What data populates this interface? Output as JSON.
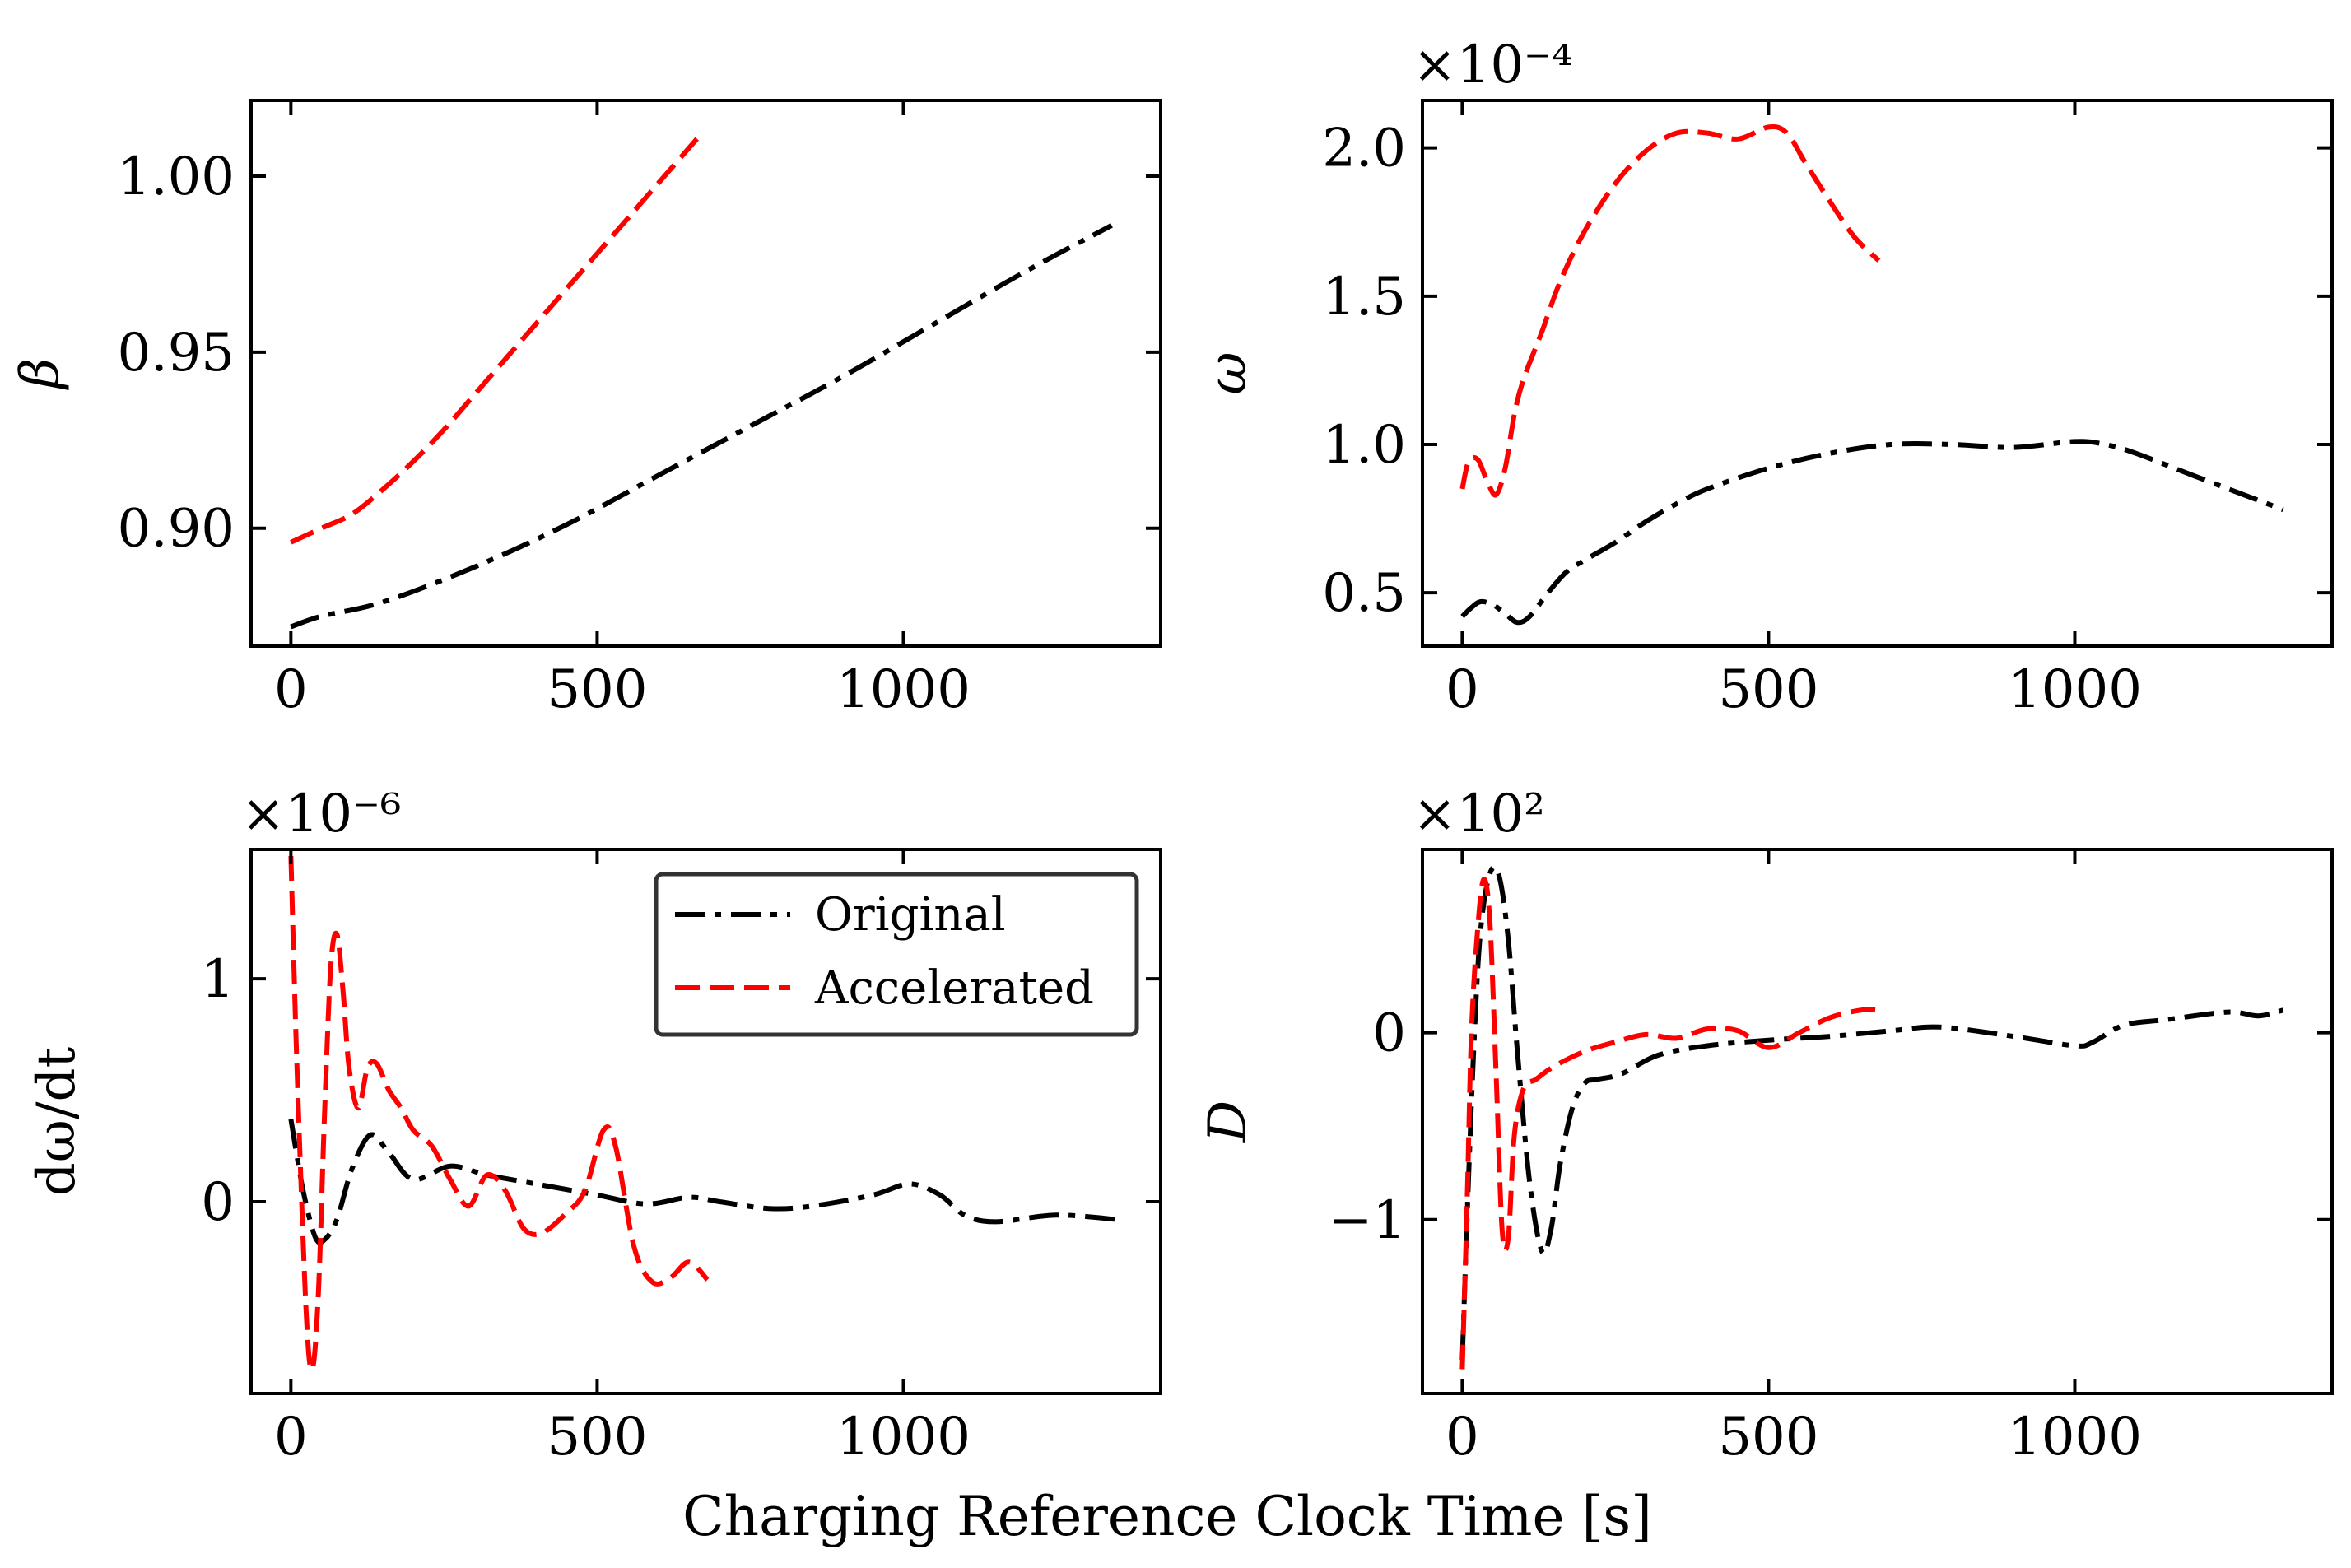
{
  "figure": {
    "xlabel": "Charging Reference Clock Time [s]"
  },
  "colors": {
    "original": "#000000",
    "accelerated": "#ff0000"
  },
  "legend": {
    "items": [
      {
        "label": "Original",
        "series": "original"
      },
      {
        "label": "Accelerated",
        "series": "accelerated"
      }
    ]
  },
  "chart_data": [
    {
      "id": "beta",
      "type": "line",
      "ylabel": "β",
      "exponent": "",
      "xlim": [
        -65,
        1420
      ],
      "ylim": [
        0.8665,
        1.0215
      ],
      "xticks": [
        0,
        500,
        1000
      ],
      "xtick_labels": [
        "0",
        "500",
        "1000"
      ],
      "yticks": [
        0.9,
        0.95,
        1.0
      ],
      "ytick_labels": [
        "0.90",
        "0.95",
        "1.00"
      ],
      "series": [
        {
          "name": "Original",
          "key": "original",
          "x": [
            0,
            50,
            150,
            300,
            450,
            600,
            750,
            900,
            1050,
            1200,
            1340
          ],
          "y": [
            0.872,
            0.875,
            0.879,
            0.889,
            0.901,
            0.915,
            0.929,
            0.943,
            0.958,
            0.973,
            0.986
          ]
        },
        {
          "name": "Accelerated",
          "key": "accelerated",
          "x": [
            0,
            50,
            100,
            150,
            200,
            250,
            300,
            350,
            400,
            450,
            500,
            550,
            600,
            670
          ],
          "y": [
            0.896,
            0.9,
            0.904,
            0.911,
            0.919,
            0.928,
            0.938,
            0.948,
            0.958,
            0.968,
            0.978,
            0.988,
            0.998,
            1.012
          ]
        }
      ]
    },
    {
      "id": "omega",
      "type": "line",
      "ylabel": "ω",
      "exponent": "×10⁻⁴",
      "xlim": [
        -65,
        1420
      ],
      "ylim": [
        0.32,
        2.16
      ],
      "xticks": [
        0,
        500,
        1000
      ],
      "xtick_labels": [
        "0",
        "500",
        "1000"
      ],
      "yticks": [
        0.5,
        1.0,
        1.5,
        2.0
      ],
      "ytick_labels": [
        "0.5",
        "1.0",
        "1.5",
        "2.0"
      ],
      "series": [
        {
          "name": "Original",
          "key": "original",
          "x": [
            0,
            15,
            30,
            50,
            70,
            90,
            110,
            140,
            170,
            200,
            250,
            300,
            350,
            400,
            500,
            600,
            700,
            800,
            900,
            1000,
            1050,
            1100,
            1200,
            1340
          ],
          "y": [
            0.42,
            0.45,
            0.47,
            0.46,
            0.43,
            0.4,
            0.42,
            0.5,
            0.57,
            0.61,
            0.67,
            0.74,
            0.8,
            0.85,
            0.92,
            0.97,
            1.0,
            1.0,
            0.99,
            1.01,
            1.0,
            0.97,
            0.89,
            0.78
          ]
        },
        {
          "name": "Accelerated",
          "key": "accelerated",
          "x": [
            0,
            10,
            25,
            40,
            55,
            70,
            85,
            100,
            130,
            160,
            200,
            250,
            300,
            350,
            400,
            450,
            500,
            530,
            560,
            600,
            640,
            680
          ],
          "y": [
            0.85,
            0.94,
            0.95,
            0.88,
            0.83,
            0.92,
            1.1,
            1.22,
            1.38,
            1.55,
            1.72,
            1.88,
            1.99,
            2.05,
            2.05,
            2.03,
            2.07,
            2.05,
            1.95,
            1.82,
            1.7,
            1.62
          ]
        }
      ]
    },
    {
      "id": "domega",
      "type": "line",
      "ylabel": "dω/dt",
      "exponent": "×10⁻⁶",
      "xlim": [
        -65,
        1420
      ],
      "ylim": [
        -0.86,
        1.58
      ],
      "xticks": [
        0,
        500,
        1000
      ],
      "xtick_labels": [
        "0",
        "500",
        "1000"
      ],
      "yticks": [
        0,
        1
      ],
      "ytick_labels": [
        "0",
        "1"
      ],
      "series": [
        {
          "name": "Original",
          "key": "original",
          "x": [
            0,
            20,
            40,
            55,
            75,
            100,
            130,
            160,
            200,
            260,
            320,
            400,
            500,
            580,
            650,
            700,
            780,
            850,
            950,
            1010,
            1060,
            1100,
            1150,
            1250,
            1350
          ],
          "y": [
            0.37,
            0.05,
            -0.16,
            -0.17,
            -0.08,
            0.15,
            0.3,
            0.22,
            0.1,
            0.16,
            0.12,
            0.08,
            0.03,
            -0.01,
            0.02,
            0.0,
            -0.03,
            -0.02,
            0.03,
            0.08,
            0.03,
            -0.06,
            -0.09,
            -0.06,
            -0.08
          ]
        },
        {
          "name": "Accelerated",
          "key": "accelerated",
          "x": [
            0,
            10,
            25,
            35,
            45,
            55,
            65,
            75,
            85,
            95,
            110,
            125,
            140,
            160,
            180,
            200,
            230,
            260,
            290,
            320,
            350,
            380,
            410,
            450,
            480,
            510,
            530,
            560,
            590,
            620,
            650,
            680
          ],
          "y": [
            1.55,
            0.6,
            -0.5,
            -0.75,
            -0.4,
            0.4,
            1.05,
            1.2,
            0.95,
            0.6,
            0.42,
            0.6,
            0.62,
            0.5,
            0.42,
            0.32,
            0.25,
            0.1,
            -0.02,
            0.12,
            0.05,
            -0.12,
            -0.14,
            -0.05,
            0.05,
            0.32,
            0.25,
            -0.2,
            -0.36,
            -0.34,
            -0.27,
            -0.35
          ]
        }
      ]
    },
    {
      "id": "D",
      "type": "line",
      "ylabel": "D",
      "exponent": "×10²",
      "xlim": [
        -65,
        1420
      ],
      "ylim": [
        -1.93,
        0.98
      ],
      "xticks": [
        0,
        500,
        1000
      ],
      "xtick_labels": [
        "0",
        "500",
        "1000"
      ],
      "yticks": [
        -1,
        0
      ],
      "ytick_labels": [
        "−1",
        "0"
      ],
      "series": [
        {
          "name": "Original",
          "key": "original",
          "x": [
            0,
            10,
            20,
            30,
            45,
            60,
            75,
            90,
            110,
            130,
            145,
            160,
            180,
            200,
            220,
            260,
            320,
            400,
            500,
            600,
            700,
            780,
            900,
            1000,
            1030,
            1080,
            1150,
            1250,
            1300,
            1340
          ],
          "y": [
            -1.75,
            -0.8,
            0.0,
            0.55,
            0.85,
            0.84,
            0.5,
            -0.1,
            -0.8,
            -1.17,
            -1.05,
            -0.7,
            -0.4,
            -0.27,
            -0.25,
            -0.22,
            -0.12,
            -0.07,
            -0.04,
            -0.02,
            0.01,
            0.03,
            -0.02,
            -0.07,
            -0.05,
            0.04,
            0.07,
            0.11,
            0.09,
            0.12
          ]
        },
        {
          "name": "Accelerated",
          "key": "accelerated",
          "x": [
            0,
            8,
            15,
            25,
            35,
            45,
            55,
            65,
            75,
            85,
            100,
            120,
            150,
            200,
            250,
            300,
            350,
            400,
            450,
            500,
            550,
            600,
            650,
            680
          ],
          "y": [
            -1.8,
            -0.9,
            0.0,
            0.55,
            0.82,
            0.6,
            -0.2,
            -1.05,
            -1.1,
            -0.55,
            -0.3,
            -0.25,
            -0.18,
            -0.1,
            -0.05,
            -0.01,
            -0.03,
            0.02,
            0.01,
            -0.08,
            0.0,
            0.08,
            0.12,
            0.12
          ]
        }
      ]
    }
  ]
}
